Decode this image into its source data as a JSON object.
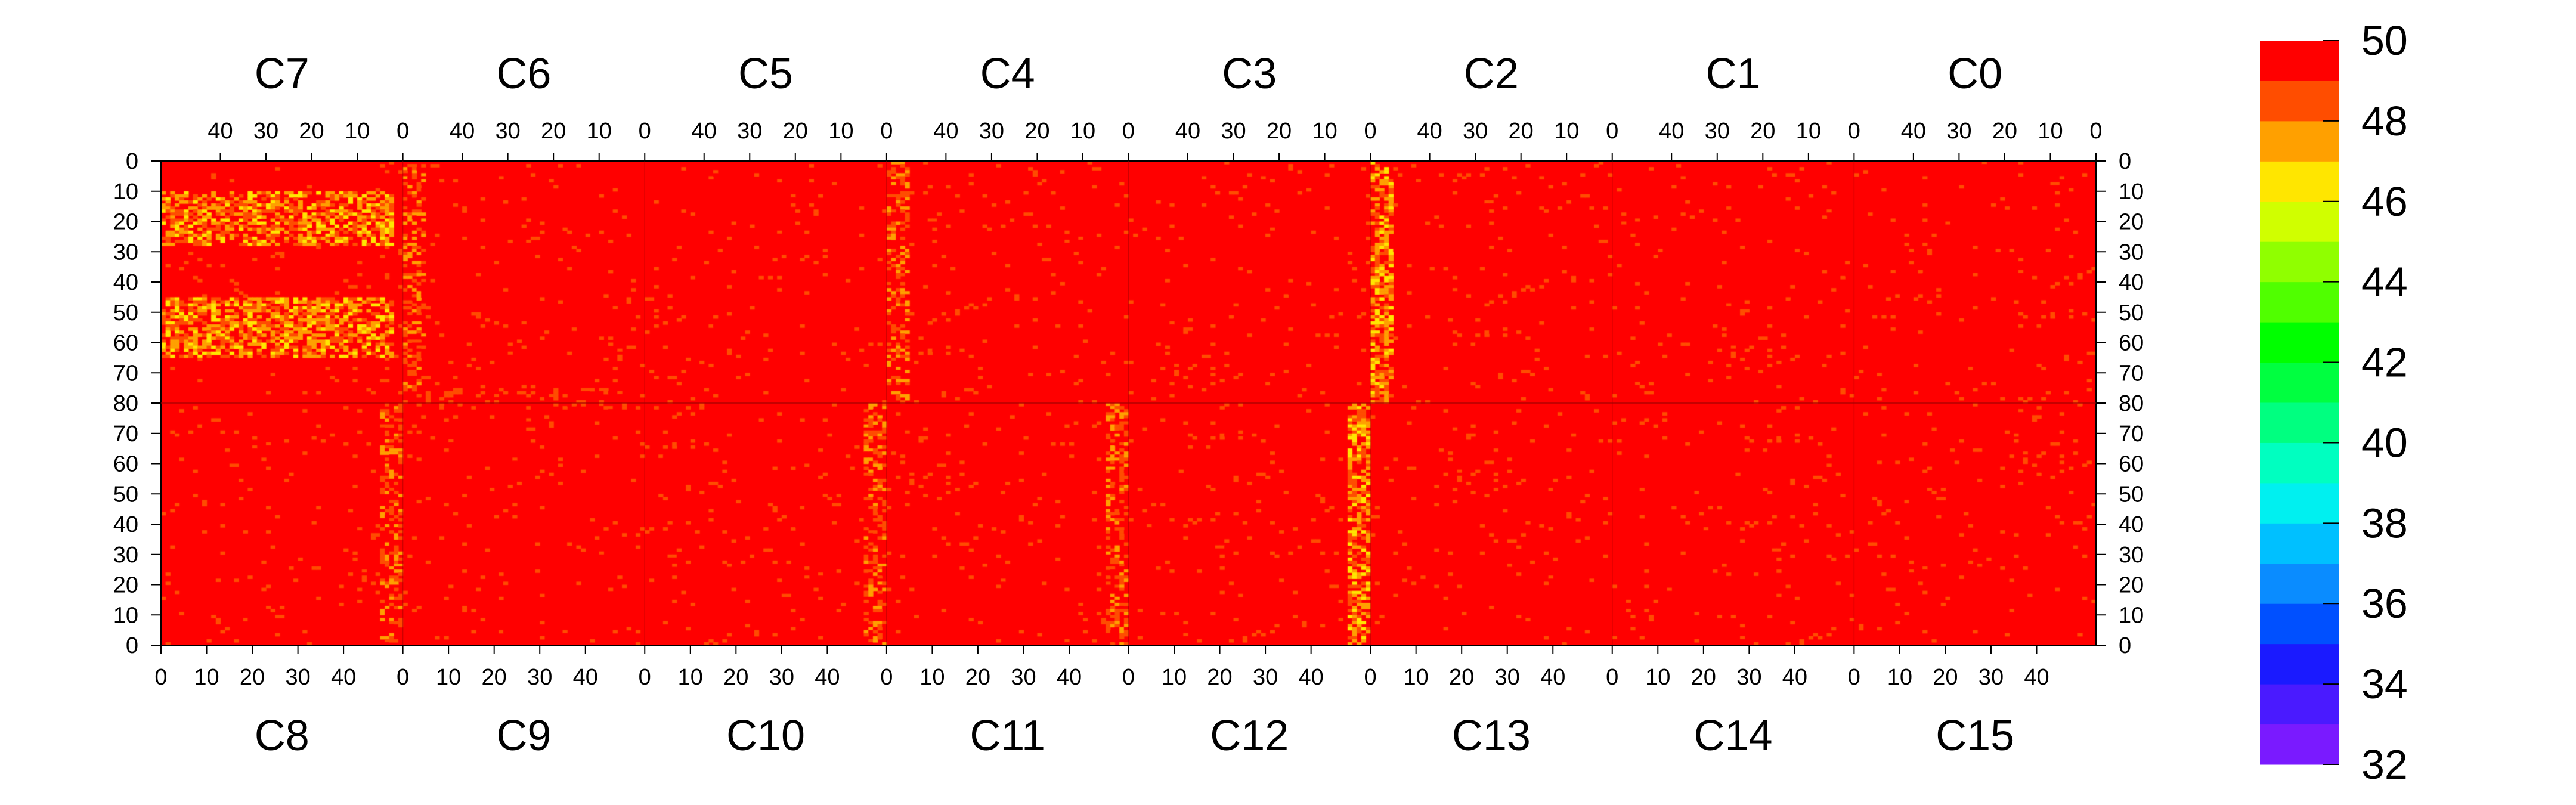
{
  "chart_data": {
    "type": "heatmap",
    "title": "",
    "xlabel": "",
    "ylabel": "",
    "top_chips": [
      "C7",
      "C6",
      "C5",
      "C4",
      "C3",
      "C2",
      "C1",
      "C0"
    ],
    "bottom_chips": [
      "C8",
      "C9",
      "C10",
      "C11",
      "C12",
      "C13",
      "C14",
      "C15"
    ],
    "top_x_ticks": [
      "40",
      "30",
      "20",
      "10",
      "0"
    ],
    "bottom_x_ticks": [
      "0",
      "10",
      "20",
      "30",
      "40"
    ],
    "columns_per_chip": 53,
    "top_y_ticks": [
      "0",
      "10",
      "20",
      "30",
      "40",
      "50",
      "60",
      "70",
      "80"
    ],
    "bottom_y_ticks": [
      "70",
      "60",
      "50",
      "40",
      "30",
      "20",
      "10",
      "0"
    ],
    "rows_per_half": 80,
    "z_range": [
      32,
      50
    ],
    "colorbar": {
      "ticks": [
        "50",
        "48",
        "46",
        "44",
        "42",
        "40",
        "38",
        "36",
        "34",
        "32"
      ],
      "bands": [
        {
          "from": 32,
          "to": 33,
          "color": "#7a1aff"
        },
        {
          "from": 33,
          "to": 34,
          "color": "#4a1aff"
        },
        {
          "from": 34,
          "to": 35,
          "color": "#1a1aff"
        },
        {
          "from": 35,
          "to": 36,
          "color": "#0050ff"
        },
        {
          "from": 36,
          "to": 37,
          "color": "#0a8cff"
        },
        {
          "from": 37,
          "to": 38,
          "color": "#00c0ff"
        },
        {
          "from": 38,
          "to": 39,
          "color": "#00f0f0"
        },
        {
          "from": 39,
          "to": 40,
          "color": "#00ffc0"
        },
        {
          "from": 40,
          "to": 41,
          "color": "#00ff80"
        },
        {
          "from": 41,
          "to": 42,
          "color": "#00ff40"
        },
        {
          "from": 42,
          "to": 43,
          "color": "#00ff00"
        },
        {
          "from": 43,
          "to": 44,
          "color": "#50ff00"
        },
        {
          "from": 44,
          "to": 45,
          "color": "#90ff00"
        },
        {
          "from": 45,
          "to": 46,
          "color": "#d0ff00"
        },
        {
          "from": 46,
          "to": 47,
          "color": "#ffe600"
        },
        {
          "from": 47,
          "to": 48,
          "color": "#ffa000"
        },
        {
          "from": 48,
          "to": 49,
          "color": "#ff4d00"
        },
        {
          "from": 49,
          "to": 50,
          "color": "#ff0000"
        }
      ]
    },
    "dominant_value": 50,
    "regions": [
      {
        "half": "top",
        "chip": "C7",
        "rows": [
          10,
          28
        ],
        "cols": [
          2,
          53
        ],
        "typical_value": 47
      },
      {
        "half": "top",
        "chip": "C7",
        "rows": [
          45,
          65
        ],
        "cols": [
          2,
          53
        ],
        "typical_value": 47
      },
      {
        "half": "top",
        "chip": "C6",
        "rows": [
          0,
          80
        ],
        "cols": [
          48,
          53
        ],
        "typical_value": 48
      },
      {
        "half": "top",
        "chip": "C4",
        "rows": [
          0,
          80
        ],
        "cols": [
          48,
          53
        ],
        "typical_value": 48
      },
      {
        "half": "top",
        "chip": "C2",
        "rows": [
          0,
          80
        ],
        "cols": [
          48,
          53
        ],
        "typical_value": 47
      },
      {
        "half": "bottom",
        "chip": "C8",
        "rows": [
          0,
          80
        ],
        "cols": [
          48,
          53
        ],
        "typical_value": 48
      },
      {
        "half": "bottom",
        "chip": "C10",
        "rows": [
          0,
          80
        ],
        "cols": [
          48,
          53
        ],
        "typical_value": 48
      },
      {
        "half": "bottom",
        "chip": "C11",
        "rows": [
          0,
          80
        ],
        "cols": [
          48,
          53
        ],
        "typical_value": 48
      },
      {
        "half": "bottom",
        "chip": "C12",
        "rows": [
          0,
          80
        ],
        "cols": [
          48,
          53
        ],
        "typical_value": 47
      },
      {
        "half": "top",
        "chip": "C6",
        "rows": [
          75,
          80
        ],
        "cols": [
          0,
          53
        ],
        "typical_value": 49
      },
      {
        "half": "bottom",
        "chip": "C9",
        "rows": [
          78,
          80
        ],
        "cols": [
          0,
          53
        ],
        "typical_value": 49
      }
    ],
    "background_noise_fraction": 0.05,
    "grid": false
  }
}
